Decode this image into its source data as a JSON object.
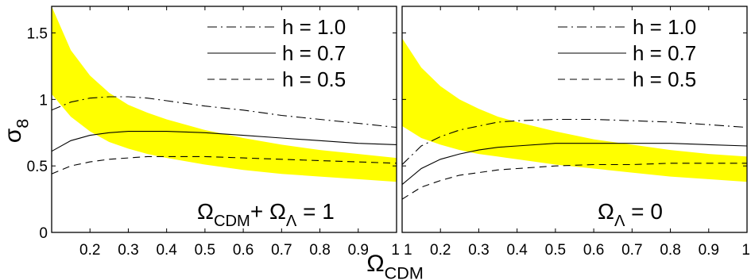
{
  "chart_data": [
    {
      "type": "line",
      "panel": "left",
      "xlim": [
        0.1,
        1.0
      ],
      "ylim": [
        0,
        1.7
      ],
      "x_ticks": [
        "0.2",
        "0.3",
        "0.4",
        "0.5",
        "0.6",
        "0.7",
        "0.8",
        "0.9",
        "1"
      ],
      "y_ticks": [
        "0",
        "0.5",
        "1",
        "1.5"
      ],
      "ylabel": "σ",
      "ylabel_sub": "8",
      "annotation": {
        "text": "Ω",
        "sub1": "CDM",
        "plus": "+ Ω",
        "sub2": "Λ",
        "rest": " = 1"
      },
      "band": {
        "color": "#ffff00",
        "x": [
          0.1,
          0.15,
          0.2,
          0.25,
          0.3,
          0.35,
          0.4,
          0.5,
          0.6,
          0.7,
          0.8,
          0.9,
          1.0
        ],
        "upper": [
          1.7,
          1.37,
          1.18,
          1.05,
          0.96,
          0.9,
          0.85,
          0.77,
          0.71,
          0.66,
          0.62,
          0.59,
          0.56
        ],
        "lower": [
          1.04,
          0.87,
          0.76,
          0.68,
          0.63,
          0.59,
          0.56,
          0.51,
          0.47,
          0.44,
          0.42,
          0.4,
          0.38
        ]
      },
      "series": [
        {
          "name": "h = 1.0",
          "style": "dashdot",
          "x": [
            0.1,
            0.15,
            0.2,
            0.25,
            0.3,
            0.35,
            0.4,
            0.5,
            0.6,
            0.7,
            0.8,
            0.9,
            1.0
          ],
          "values": [
            0.92,
            0.98,
            1.01,
            1.02,
            1.02,
            1.01,
            0.99,
            0.95,
            0.92,
            0.88,
            0.85,
            0.82,
            0.79
          ]
        },
        {
          "name": "h = 0.7",
          "style": "solid",
          "x": [
            0.1,
            0.15,
            0.2,
            0.25,
            0.3,
            0.35,
            0.4,
            0.5,
            0.6,
            0.7,
            0.8,
            0.9,
            1.0
          ],
          "values": [
            0.61,
            0.69,
            0.73,
            0.75,
            0.76,
            0.76,
            0.76,
            0.75,
            0.73,
            0.71,
            0.69,
            0.67,
            0.66
          ]
        },
        {
          "name": "h = 0.5",
          "style": "dashed",
          "x": [
            0.1,
            0.15,
            0.2,
            0.25,
            0.3,
            0.35,
            0.4,
            0.5,
            0.6,
            0.7,
            0.8,
            0.9,
            1.0
          ],
          "values": [
            0.44,
            0.5,
            0.53,
            0.55,
            0.56,
            0.57,
            0.57,
            0.57,
            0.56,
            0.55,
            0.54,
            0.53,
            0.52
          ]
        }
      ]
    },
    {
      "type": "line",
      "panel": "right",
      "xlim": [
        0.1,
        1.0
      ],
      "ylim": [
        0,
        1.7
      ],
      "x_ticks": [
        "1",
        "0.2",
        "0.3",
        "0.4",
        "0.5",
        "0.6",
        "0.7",
        "0.8",
        "0.9",
        "1"
      ],
      "xlabel": "Ω",
      "xlabel_sub": "CDM",
      "annotation": {
        "text": "Ω",
        "sub1": "Λ",
        "rest": " = 0"
      },
      "band": {
        "color": "#ffff00",
        "x": [
          0.1,
          0.15,
          0.2,
          0.25,
          0.3,
          0.35,
          0.4,
          0.5,
          0.6,
          0.7,
          0.8,
          0.9,
          1.0
        ],
        "upper": [
          1.46,
          1.24,
          1.1,
          1.0,
          0.93,
          0.87,
          0.83,
          0.76,
          0.7,
          0.66,
          0.62,
          0.59,
          0.57
        ],
        "lower": [
          0.8,
          0.71,
          0.66,
          0.62,
          0.59,
          0.57,
          0.55,
          0.51,
          0.48,
          0.45,
          0.42,
          0.4,
          0.38
        ]
      },
      "series": [
        {
          "name": "h = 1.0",
          "style": "dashdot",
          "x": [
            0.1,
            0.15,
            0.2,
            0.25,
            0.3,
            0.35,
            0.4,
            0.5,
            0.6,
            0.7,
            0.8,
            0.9,
            1.0
          ],
          "values": [
            0.51,
            0.65,
            0.72,
            0.77,
            0.8,
            0.83,
            0.84,
            0.85,
            0.85,
            0.84,
            0.83,
            0.81,
            0.79
          ]
        },
        {
          "name": "h = 0.7",
          "style": "solid",
          "x": [
            0.1,
            0.15,
            0.2,
            0.25,
            0.3,
            0.35,
            0.4,
            0.5,
            0.6,
            0.7,
            0.8,
            0.9,
            1.0
          ],
          "values": [
            0.36,
            0.48,
            0.55,
            0.59,
            0.62,
            0.64,
            0.65,
            0.67,
            0.67,
            0.67,
            0.67,
            0.66,
            0.65
          ]
        },
        {
          "name": "h = 0.5",
          "style": "dashed",
          "x": [
            0.1,
            0.15,
            0.2,
            0.25,
            0.3,
            0.35,
            0.4,
            0.5,
            0.6,
            0.7,
            0.8,
            0.9,
            1.0
          ],
          "values": [
            0.25,
            0.34,
            0.39,
            0.43,
            0.45,
            0.47,
            0.48,
            0.5,
            0.51,
            0.51,
            0.52,
            0.52,
            0.52
          ]
        }
      ]
    }
  ]
}
